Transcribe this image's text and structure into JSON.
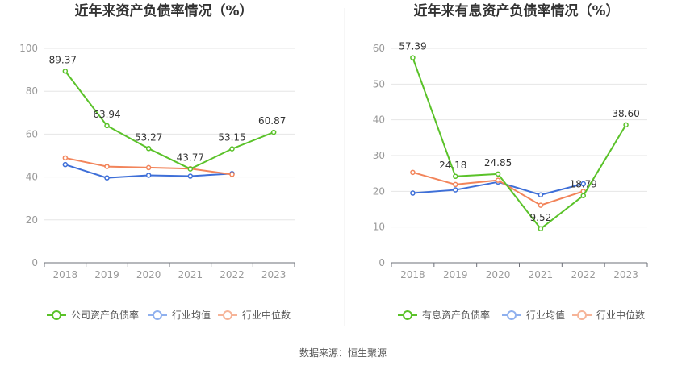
{
  "source": "数据来源：恒生聚源",
  "chart_data": [
    {
      "type": "line",
      "title": "近年来资产负债率情况（%）",
      "x": [
        "2018",
        "2019",
        "2020",
        "2021",
        "2022",
        "2023"
      ],
      "ylim": [
        0,
        100
      ],
      "yticks": [
        0,
        20,
        40,
        60,
        80,
        100
      ],
      "grid": true,
      "legend_position": "bottom",
      "series": [
        {
          "name": "公司资产负债率",
          "color": "#5ac229",
          "labeled": true,
          "values": [
            89.37,
            63.94,
            53.27,
            43.77,
            53.15,
            60.87
          ]
        },
        {
          "name": "行业均值",
          "color": "#3e6fd8",
          "labeled": false,
          "values": [
            45.8,
            39.6,
            40.8,
            40.4,
            41.6,
            null
          ]
        },
        {
          "name": "行业中位数",
          "color": "#f2845a",
          "labeled": false,
          "values": [
            48.9,
            44.9,
            44.4,
            43.9,
            41.2,
            null
          ]
        }
      ]
    },
    {
      "type": "line",
      "title": "近年来有息资产负债率情况（%）",
      "x": [
        "2018",
        "2019",
        "2020",
        "2021",
        "2022",
        "2023"
      ],
      "ylim": [
        0,
        60
      ],
      "yticks": [
        0,
        10,
        20,
        30,
        40,
        50,
        60
      ],
      "grid": true,
      "legend_position": "bottom",
      "series": [
        {
          "name": "有息资产负债率",
          "color": "#5ac229",
          "labeled": true,
          "values": [
            57.39,
            24.18,
            24.85,
            9.52,
            18.79,
            38.6
          ]
        },
        {
          "name": "行业均值",
          "color": "#3e6fd8",
          "labeled": false,
          "values": [
            19.5,
            20.4,
            22.6,
            19.0,
            22.1,
            null
          ]
        },
        {
          "name": "行业中位数",
          "color": "#f2845a",
          "labeled": false,
          "values": [
            25.3,
            21.9,
            23.1,
            16.1,
            20.0,
            null
          ]
        }
      ]
    }
  ]
}
